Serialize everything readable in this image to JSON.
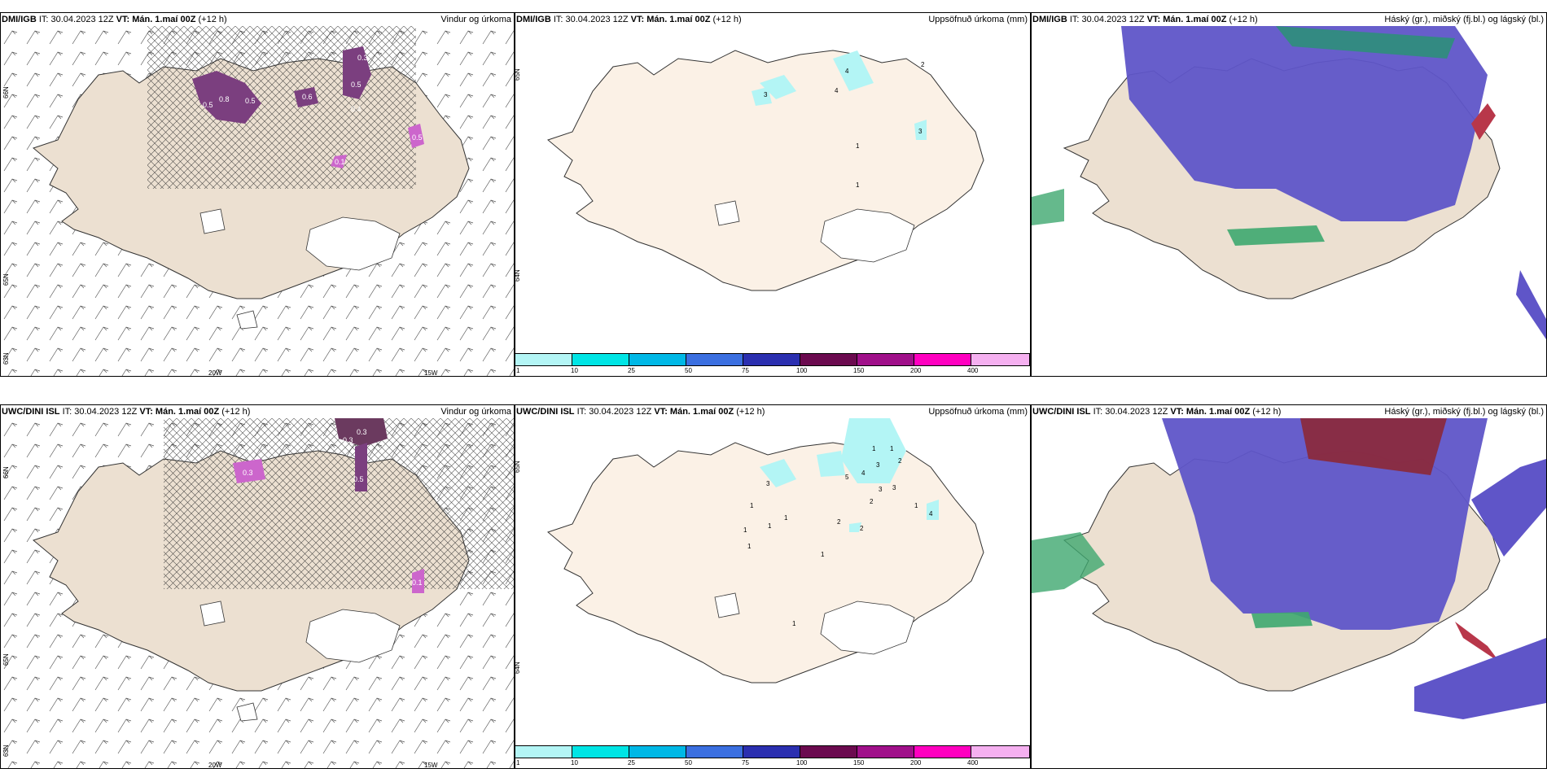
{
  "colors": {
    "land": "#ece0d1",
    "land_light": "#fbf1e6",
    "precip_purple": "#7b3f7f",
    "precip_pink": "#cc66cc",
    "cloud_high": "#5f55c8",
    "cloud_mid_red": "#b8374a",
    "cloud_low_green": "#3ea86f",
    "light_cyan": "#b3f5f5"
  },
  "panels": [
    {
      "model": "DMI/IGB",
      "it": "IT: 30.04.2023 12Z",
      "vt": "VT: Mán. 1.maí 00Z",
      "lead": "(+12 h)",
      "title": "Vindur og úrkoma",
      "lat_labels": [
        "66N",
        "65N",
        "63N"
      ],
      "lon_labels": [
        "20W",
        "15W"
      ],
      "precip_labels": [
        "0.5",
        "0.5",
        "0.6",
        "0.3",
        "0.5",
        "0.8",
        "0.4",
        "0.5",
        "0.1"
      ]
    },
    {
      "model": "DMI/IGB",
      "it": "IT: 30.04.2023 12Z",
      "vt": "VT: Mán. 1.maí 00Z",
      "lead": "(+12 h)",
      "title": "Uppsöfnuð úrkoma (mm)",
      "lat_labels": [
        "65N",
        "64N"
      ],
      "accum_labels": [
        "3",
        "4",
        "4",
        "2",
        "1",
        "1",
        "3"
      ]
    },
    {
      "model": "DMI/IGB",
      "it": "IT: 30.04.2023 12Z",
      "vt": "VT: Mán. 1.maí 00Z",
      "lead": "(+12 h)",
      "title": "Háský (gr.), miðský (fj.bl.) og lágský (bl.)"
    },
    {
      "model": "UWC/DINI ISL",
      "it": "IT: 30.04.2023 12Z",
      "vt": "VT: Mán. 1.maí 00Z",
      "lead": "(+12 h)",
      "title": "Vindur og úrkoma",
      "lat_labels": [
        "66N",
        "65N",
        "63N"
      ],
      "lon_labels": [
        "20W",
        "15W"
      ],
      "precip_labels": [
        "0.3",
        "0.3",
        "0.5",
        "0.3",
        "0.1"
      ]
    },
    {
      "model": "UWC/DINI ISL",
      "it": "IT: 30.04.2023 12Z",
      "vt": "VT: Mán. 1.maí 00Z",
      "lead": "(+12 h)",
      "title": "Uppsöfnuð úrkoma (mm)",
      "lat_labels": [
        "65N",
        "64N"
      ],
      "accum_labels": [
        "3",
        "5",
        "4",
        "1",
        "3",
        "3",
        "1",
        "2",
        "2",
        "1",
        "1",
        "3",
        "1",
        "2",
        "1",
        "1",
        "1",
        "4",
        "2",
        "1",
        "1"
      ]
    },
    {
      "model": "UWC/DINI ISL",
      "it": "IT: 30.04.2023 12Z",
      "vt": "VT: Mán. 1.maí 00Z",
      "lead": "(+12 h)",
      "title": "Háský (gr.), miðský (fj.bl.) og lágský (bl.)"
    }
  ],
  "colorbar": {
    "ticks": [
      "1",
      "10",
      "25",
      "50",
      "75",
      "100",
      "150",
      "200",
      "400"
    ],
    "colors": [
      "#b3f5f5",
      "#00e5e5",
      "#00b8e6",
      "#3b6fe0",
      "#2b2fb0",
      "#6b0a4f",
      "#a0108a",
      "#ff00c0",
      "#f5b0f0"
    ]
  }
}
